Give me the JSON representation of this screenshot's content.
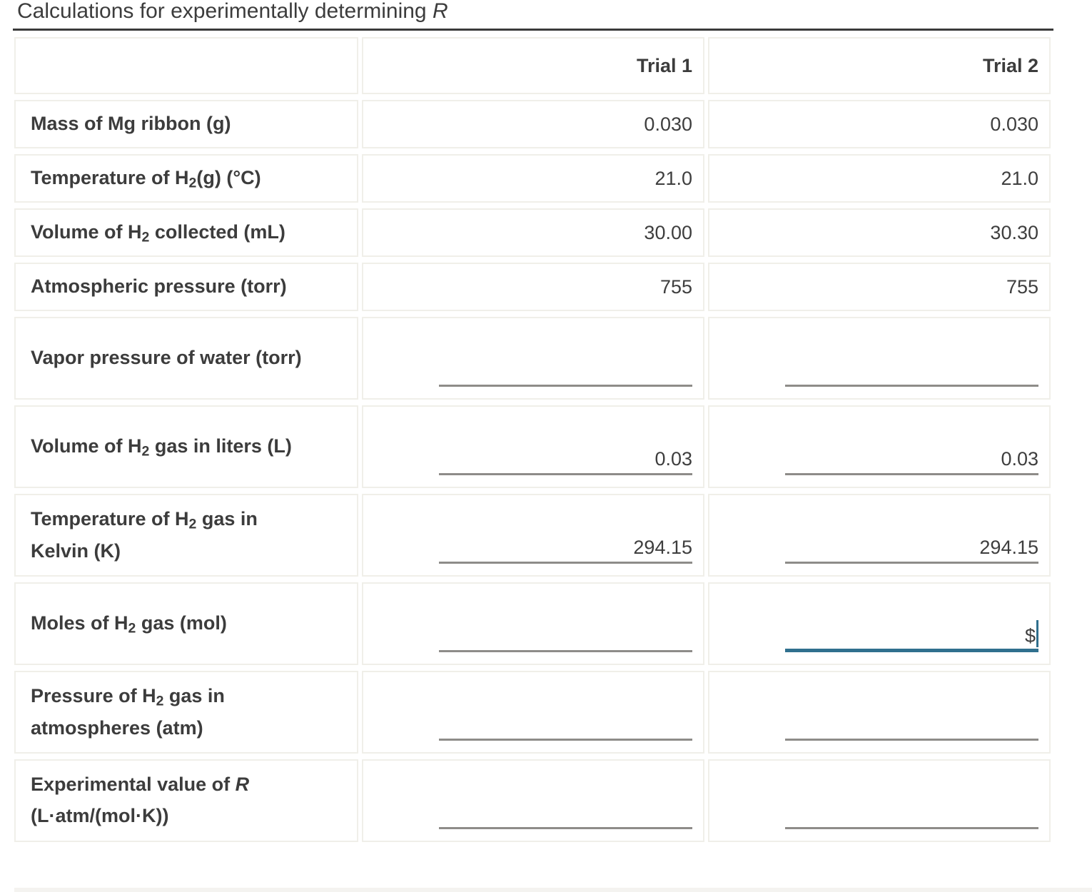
{
  "page": {
    "title_parts": [
      {
        "text": "Calculations for experimentally determining "
      },
      {
        "text": "R",
        "style": "italic"
      }
    ]
  },
  "colors": {
    "focused_underline": "#30708e",
    "blank_underline": "#8e8c89",
    "cell_border": "#f0efe9",
    "text": "#3c3c3c"
  },
  "table": {
    "header": {
      "label": "",
      "col1": "Trial 1",
      "col2": "Trial 2"
    },
    "rows": [
      {
        "name": "mass-of-mg-ribbon",
        "type": "static",
        "label_parts": [
          {
            "text": "Mass of Mg ribbon (g)"
          }
        ],
        "values": [
          "0.030",
          "0.030"
        ]
      },
      {
        "name": "temperature-of-h2-celsius",
        "type": "static",
        "label_parts": [
          {
            "text": "Temperature of H"
          },
          {
            "text": "2",
            "style": "sub"
          },
          {
            "text": "(g) (°C)"
          }
        ],
        "values": [
          "21.0",
          "21.0"
        ]
      },
      {
        "name": "volume-of-h2-collected",
        "type": "static",
        "label_parts": [
          {
            "text": "Volume of H"
          },
          {
            "text": "2",
            "style": "sub"
          },
          {
            "text": " collected (mL)"
          }
        ],
        "values": [
          "30.00",
          "30.30"
        ]
      },
      {
        "name": "atmospheric-pressure",
        "type": "static",
        "label_parts": [
          {
            "text": "Atmospheric pressure (torr)"
          }
        ],
        "values": [
          "755",
          "755"
        ]
      },
      {
        "name": "vapor-pressure-of-water",
        "type": "input",
        "label_parts": [
          {
            "text": "Vapor pressure of water (torr)"
          }
        ],
        "values": [
          "",
          ""
        ],
        "focused": [
          false,
          false
        ]
      },
      {
        "name": "volume-of-h2-liters",
        "type": "input",
        "label_parts": [
          {
            "text": "Volume of H"
          },
          {
            "text": "2",
            "style": "sub"
          },
          {
            "text": " gas in liters (L)"
          }
        ],
        "values": [
          "0.03",
          "0.03"
        ],
        "focused": [
          false,
          false
        ]
      },
      {
        "name": "temperature-of-h2-kelvin",
        "type": "input",
        "label_parts": [
          {
            "text": "Temperature of H"
          },
          {
            "text": "2",
            "style": "sub"
          },
          {
            "text": " gas in"
          },
          {
            "style": "br"
          },
          {
            "text": "Kelvin (K)"
          }
        ],
        "values": [
          "294.15",
          "294.15"
        ],
        "focused": [
          false,
          false
        ]
      },
      {
        "name": "moles-of-h2-gas",
        "type": "input",
        "label_parts": [
          {
            "text": "Moles of H"
          },
          {
            "text": "2",
            "style": "sub"
          },
          {
            "text": " gas (mol)"
          }
        ],
        "values": [
          "",
          "$"
        ],
        "focused": [
          false,
          true
        ]
      },
      {
        "name": "pressure-of-h2-atm",
        "type": "input",
        "label_parts": [
          {
            "text": "Pressure of H"
          },
          {
            "text": "2",
            "style": "sub"
          },
          {
            "text": " gas in"
          },
          {
            "style": "br"
          },
          {
            "text": "atmospheres (atm)"
          }
        ],
        "values": [
          "",
          ""
        ],
        "focused": [
          false,
          false
        ]
      },
      {
        "name": "experimental-value-of-r",
        "type": "input",
        "label_parts": [
          {
            "text": "Experimental value of "
          },
          {
            "text": "R",
            "style": "italic"
          },
          {
            "style": "br"
          },
          {
            "text": "(L·atm/(mol·K))"
          }
        ],
        "values": [
          "",
          ""
        ],
        "focused": [
          false,
          false
        ]
      }
    ]
  }
}
